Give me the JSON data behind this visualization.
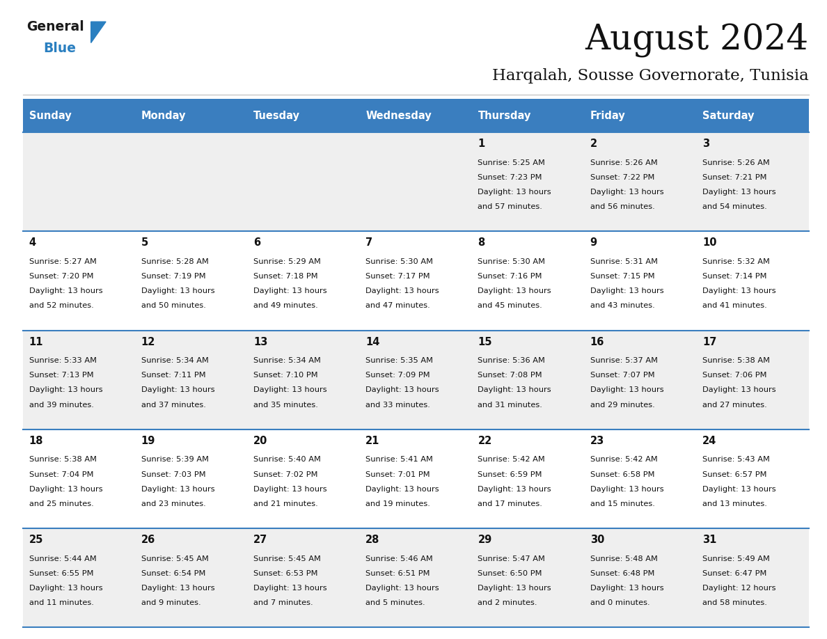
{
  "title": "August 2024",
  "subtitle": "Harqalah, Sousse Governorate, Tunisia",
  "header_bg_color": "#3a7ebf",
  "header_text_color": "#ffffff",
  "cell_bg_odd": "#efefef",
  "cell_bg_even": "#ffffff",
  "text_color": "#333333",
  "days_of_week": [
    "Sunday",
    "Monday",
    "Tuesday",
    "Wednesday",
    "Thursday",
    "Friday",
    "Saturday"
  ],
  "calendar_data": [
    [
      {
        "day": "",
        "sunrise": "",
        "sunset": "",
        "daylight": ""
      },
      {
        "day": "",
        "sunrise": "",
        "sunset": "",
        "daylight": ""
      },
      {
        "day": "",
        "sunrise": "",
        "sunset": "",
        "daylight": ""
      },
      {
        "day": "",
        "sunrise": "",
        "sunset": "",
        "daylight": ""
      },
      {
        "day": "1",
        "sunrise": "5:25 AM",
        "sunset": "7:23 PM",
        "daylight_h": "13",
        "daylight_m": "57"
      },
      {
        "day": "2",
        "sunrise": "5:26 AM",
        "sunset": "7:22 PM",
        "daylight_h": "13",
        "daylight_m": "56"
      },
      {
        "day": "3",
        "sunrise": "5:26 AM",
        "sunset": "7:21 PM",
        "daylight_h": "13",
        "daylight_m": "54"
      }
    ],
    [
      {
        "day": "4",
        "sunrise": "5:27 AM",
        "sunset": "7:20 PM",
        "daylight_h": "13",
        "daylight_m": "52"
      },
      {
        "day": "5",
        "sunrise": "5:28 AM",
        "sunset": "7:19 PM",
        "daylight_h": "13",
        "daylight_m": "50"
      },
      {
        "day": "6",
        "sunrise": "5:29 AM",
        "sunset": "7:18 PM",
        "daylight_h": "13",
        "daylight_m": "49"
      },
      {
        "day": "7",
        "sunrise": "5:30 AM",
        "sunset": "7:17 PM",
        "daylight_h": "13",
        "daylight_m": "47"
      },
      {
        "day": "8",
        "sunrise": "5:30 AM",
        "sunset": "7:16 PM",
        "daylight_h": "13",
        "daylight_m": "45"
      },
      {
        "day": "9",
        "sunrise": "5:31 AM",
        "sunset": "7:15 PM",
        "daylight_h": "13",
        "daylight_m": "43"
      },
      {
        "day": "10",
        "sunrise": "5:32 AM",
        "sunset": "7:14 PM",
        "daylight_h": "13",
        "daylight_m": "41"
      }
    ],
    [
      {
        "day": "11",
        "sunrise": "5:33 AM",
        "sunset": "7:13 PM",
        "daylight_h": "13",
        "daylight_m": "39"
      },
      {
        "day": "12",
        "sunrise": "5:34 AM",
        "sunset": "7:11 PM",
        "daylight_h": "13",
        "daylight_m": "37"
      },
      {
        "day": "13",
        "sunrise": "5:34 AM",
        "sunset": "7:10 PM",
        "daylight_h": "13",
        "daylight_m": "35"
      },
      {
        "day": "14",
        "sunrise": "5:35 AM",
        "sunset": "7:09 PM",
        "daylight_h": "13",
        "daylight_m": "33"
      },
      {
        "day": "15",
        "sunrise": "5:36 AM",
        "sunset": "7:08 PM",
        "daylight_h": "13",
        "daylight_m": "31"
      },
      {
        "day": "16",
        "sunrise": "5:37 AM",
        "sunset": "7:07 PM",
        "daylight_h": "13",
        "daylight_m": "29"
      },
      {
        "day": "17",
        "sunrise": "5:38 AM",
        "sunset": "7:06 PM",
        "daylight_h": "13",
        "daylight_m": "27"
      }
    ],
    [
      {
        "day": "18",
        "sunrise": "5:38 AM",
        "sunset": "7:04 PM",
        "daylight_h": "13",
        "daylight_m": "25"
      },
      {
        "day": "19",
        "sunrise": "5:39 AM",
        "sunset": "7:03 PM",
        "daylight_h": "13",
        "daylight_m": "23"
      },
      {
        "day": "20",
        "sunrise": "5:40 AM",
        "sunset": "7:02 PM",
        "daylight_h": "13",
        "daylight_m": "21"
      },
      {
        "day": "21",
        "sunrise": "5:41 AM",
        "sunset": "7:01 PM",
        "daylight_h": "13",
        "daylight_m": "19"
      },
      {
        "day": "22",
        "sunrise": "5:42 AM",
        "sunset": "6:59 PM",
        "daylight_h": "13",
        "daylight_m": "17"
      },
      {
        "day": "23",
        "sunrise": "5:42 AM",
        "sunset": "6:58 PM",
        "daylight_h": "13",
        "daylight_m": "15"
      },
      {
        "day": "24",
        "sunrise": "5:43 AM",
        "sunset": "6:57 PM",
        "daylight_h": "13",
        "daylight_m": "13"
      }
    ],
    [
      {
        "day": "25",
        "sunrise": "5:44 AM",
        "sunset": "6:55 PM",
        "daylight_h": "13",
        "daylight_m": "11"
      },
      {
        "day": "26",
        "sunrise": "5:45 AM",
        "sunset": "6:54 PM",
        "daylight_h": "13",
        "daylight_m": "9"
      },
      {
        "day": "27",
        "sunrise": "5:45 AM",
        "sunset": "6:53 PM",
        "daylight_h": "13",
        "daylight_m": "7"
      },
      {
        "day": "28",
        "sunrise": "5:46 AM",
        "sunset": "6:51 PM",
        "daylight_h": "13",
        "daylight_m": "5"
      },
      {
        "day": "29",
        "sunrise": "5:47 AM",
        "sunset": "6:50 PM",
        "daylight_h": "13",
        "daylight_m": "2"
      },
      {
        "day": "30",
        "sunrise": "5:48 AM",
        "sunset": "6:48 PM",
        "daylight_h": "13",
        "daylight_m": "0"
      },
      {
        "day": "31",
        "sunrise": "5:49 AM",
        "sunset": "6:47 PM",
        "daylight_h": "12",
        "daylight_m": "58"
      }
    ]
  ],
  "logo_color_general": "#1a1a1a",
  "logo_color_blue": "#2a7fc0",
  "logo_triangle_color": "#2a7fc0",
  "fig_width": 11.88,
  "fig_height": 9.18,
  "dpi": 100
}
